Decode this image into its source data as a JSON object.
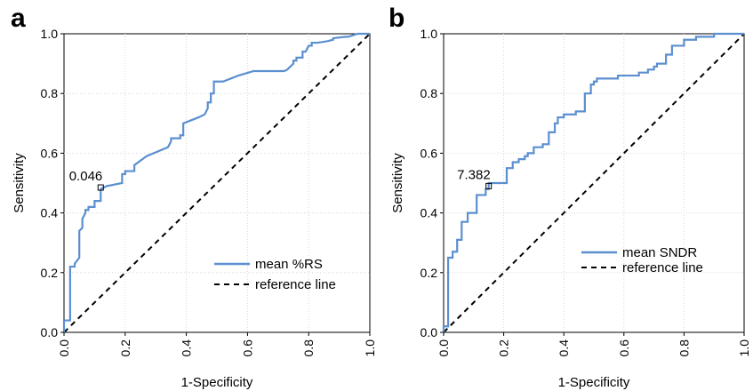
{
  "chart_data": [
    {
      "panel": "a",
      "type": "line",
      "xlabel": "1-Specificity",
      "ylabel": "Sensitivity",
      "xlim": [
        0,
        1
      ],
      "ylim": [
        0,
        1
      ],
      "grid": true,
      "xticks": [
        "0.0",
        "0.2",
        "0.4",
        "0.6",
        "0.8",
        "1.0"
      ],
      "yticks": [
        "0.0",
        "0.2",
        "0.4",
        "0.6",
        "0.8",
        "1.0"
      ],
      "legend_position": "bottom-right",
      "series": [
        {
          "name": "mean %RS",
          "color": "#5b8fd0",
          "x": [
            0.0,
            0.0,
            0.02,
            0.02,
            0.035,
            0.035,
            0.05,
            0.05,
            0.06,
            0.06,
            0.07,
            0.07,
            0.08,
            0.08,
            0.1,
            0.1,
            0.12,
            0.12,
            0.14,
            0.14,
            0.19,
            0.19,
            0.2,
            0.2,
            0.23,
            0.23,
            0.27,
            0.34,
            0.35,
            0.35,
            0.38,
            0.38,
            0.39,
            0.39,
            0.44,
            0.46,
            0.47,
            0.47,
            0.48,
            0.48,
            0.49,
            0.49,
            0.51,
            0.52,
            0.57,
            0.62,
            0.72,
            0.73,
            0.75,
            0.75,
            0.76,
            0.76,
            0.78,
            0.78,
            0.79,
            0.8,
            0.81,
            0.81,
            0.83,
            0.86,
            0.88,
            0.88,
            0.92,
            0.93,
            0.96,
            0.96,
            1.0
          ],
          "y": [
            0.0,
            0.04,
            0.04,
            0.22,
            0.22,
            0.23,
            0.25,
            0.34,
            0.35,
            0.38,
            0.4,
            0.41,
            0.41,
            0.42,
            0.42,
            0.44,
            0.44,
            0.48,
            0.49,
            0.49,
            0.5,
            0.53,
            0.53,
            0.54,
            0.54,
            0.56,
            0.59,
            0.62,
            0.64,
            0.65,
            0.65,
            0.66,
            0.66,
            0.7,
            0.72,
            0.73,
            0.75,
            0.77,
            0.77,
            0.8,
            0.8,
            0.84,
            0.84,
            0.84,
            0.86,
            0.875,
            0.875,
            0.88,
            0.9,
            0.91,
            0.91,
            0.92,
            0.92,
            0.94,
            0.94,
            0.96,
            0.96,
            0.97,
            0.97,
            0.975,
            0.98,
            0.985,
            0.99,
            0.99,
            1.0,
            1.0,
            1.0
          ]
        },
        {
          "name": "reference line",
          "color": "#000000",
          "dashed": true,
          "x": [
            0,
            1
          ],
          "y": [
            0,
            1
          ]
        }
      ],
      "annotations": [
        {
          "text": "0.046",
          "x": 0.12,
          "y": 0.485
        }
      ]
    },
    {
      "panel": "b",
      "type": "line",
      "xlabel": "1-Specificity",
      "ylabel": "Sensitivity",
      "xlim": [
        0,
        1
      ],
      "ylim": [
        0,
        1
      ],
      "grid": true,
      "xticks": [
        "0.0",
        "0.2",
        "0.4",
        "0.6",
        "0.8",
        "1.0"
      ],
      "yticks": [
        "0.0",
        "0.2",
        "0.4",
        "0.6",
        "0.8",
        "1.0"
      ],
      "legend_position": "bottom-right",
      "series": [
        {
          "name": "mean SNDR",
          "color": "#5b8fd0",
          "x": [
            0.0,
            0.0,
            0.015,
            0.015,
            0.03,
            0.03,
            0.045,
            0.045,
            0.06,
            0.06,
            0.08,
            0.08,
            0.11,
            0.11,
            0.14,
            0.14,
            0.15,
            0.15,
            0.16,
            0.16,
            0.21,
            0.21,
            0.23,
            0.23,
            0.25,
            0.25,
            0.27,
            0.27,
            0.28,
            0.28,
            0.3,
            0.3,
            0.33,
            0.33,
            0.35,
            0.35,
            0.37,
            0.37,
            0.38,
            0.38,
            0.4,
            0.4,
            0.44,
            0.44,
            0.47,
            0.47,
            0.49,
            0.49,
            0.5,
            0.5,
            0.51,
            0.51,
            0.53,
            0.53,
            0.58,
            0.58,
            0.65,
            0.65,
            0.68,
            0.68,
            0.7,
            0.7,
            0.71,
            0.71,
            0.74,
            0.74,
            0.76,
            0.76,
            0.8,
            0.8,
            0.84,
            0.84,
            0.9,
            0.9,
            0.95,
            0.95,
            1.0
          ],
          "y": [
            0.0,
            0.02,
            0.02,
            0.25,
            0.25,
            0.27,
            0.27,
            0.31,
            0.31,
            0.37,
            0.37,
            0.4,
            0.4,
            0.46,
            0.46,
            0.48,
            0.48,
            0.5,
            0.5,
            0.5,
            0.5,
            0.55,
            0.55,
            0.57,
            0.57,
            0.58,
            0.58,
            0.59,
            0.59,
            0.6,
            0.6,
            0.62,
            0.62,
            0.63,
            0.63,
            0.67,
            0.67,
            0.7,
            0.7,
            0.72,
            0.72,
            0.73,
            0.73,
            0.74,
            0.74,
            0.8,
            0.8,
            0.83,
            0.83,
            0.84,
            0.84,
            0.85,
            0.85,
            0.85,
            0.85,
            0.86,
            0.86,
            0.87,
            0.87,
            0.88,
            0.88,
            0.89,
            0.89,
            0.9,
            0.9,
            0.93,
            0.93,
            0.96,
            0.96,
            0.98,
            0.98,
            0.99,
            0.99,
            1.0,
            1.0,
            1.0,
            1.0
          ]
        },
        {
          "name": "reference line",
          "color": "#000000",
          "dashed": true,
          "x": [
            0,
            1
          ],
          "y": [
            0,
            1
          ]
        }
      ],
      "annotations": [
        {
          "text": "7.382",
          "x": 0.15,
          "y": 0.49
        }
      ]
    }
  ]
}
